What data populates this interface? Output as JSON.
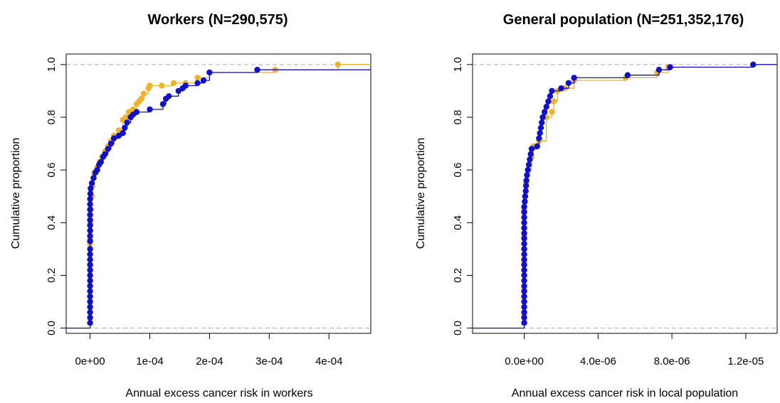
{
  "chart_data": [
    {
      "type": "line",
      "subtype": "empirical-cdf-step",
      "title": "Workers (N=290,575)",
      "xlabel": "Annual excess cancer risk in workers",
      "ylabel": "Cumulative proportion",
      "xlim": [
        -4e-05,
        0.00047
      ],
      "ylim": [
        -0.02,
        1.04
      ],
      "x_ticks": [
        0,
        0.0001,
        0.0002,
        0.0003,
        0.0004
      ],
      "x_tick_labels": [
        "0e+00",
        "1e-04",
        "2e-04",
        "3e-04",
        "4e-04"
      ],
      "y_ticks": [
        0.0,
        0.2,
        0.4,
        0.6,
        0.8,
        1.0
      ],
      "y_tick_labels": [
        "0.0",
        "0.2",
        "0.4",
        "0.6",
        "0.8",
        "1.0"
      ],
      "reference_lines": [
        0,
        1
      ],
      "grid": false,
      "series": [
        {
          "color": "#f0b428",
          "points": [
            [
              0.0,
              0.0
            ],
            [
              0.0,
              0.04
            ],
            [
              0.0,
              0.08
            ],
            [
              0.0,
              0.12
            ],
            [
              0.0,
              0.16
            ],
            [
              0.0,
              0.2
            ],
            [
              0.0,
              0.24
            ],
            [
              0.0,
              0.28
            ],
            [
              0.0,
              0.32
            ],
            [
              0.0,
              0.34
            ],
            [
              5e-07,
              0.37
            ],
            [
              1e-06,
              0.4
            ],
            [
              2e-06,
              0.45
            ],
            [
              3e-06,
              0.5
            ],
            [
              4e-06,
              0.54
            ],
            [
              5e-06,
              0.57
            ],
            [
              7e-06,
              0.59
            ],
            [
              1.2e-05,
              0.61
            ],
            [
              1.6e-05,
              0.63
            ],
            [
              2e-05,
              0.65
            ],
            [
              2.5e-05,
              0.67
            ],
            [
              3e-05,
              0.69
            ],
            [
              3.5e-05,
              0.71
            ],
            [
              4e-05,
              0.73
            ],
            [
              4.8e-05,
              0.75
            ],
            [
              5.5e-05,
              0.79
            ],
            [
              6e-05,
              0.8
            ],
            [
              6.5e-05,
              0.82
            ],
            [
              7.2e-05,
              0.83
            ],
            [
              7.8e-05,
              0.85
            ],
            [
              8.2e-05,
              0.86
            ],
            [
              8.6e-05,
              0.87
            ],
            [
              9e-05,
              0.89
            ],
            [
              9.8e-05,
              0.91
            ],
            [
              0.0001,
              0.92
            ],
            [
              0.00012,
              0.92
            ],
            [
              0.00014,
              0.93
            ],
            [
              0.00016,
              0.93
            ],
            [
              0.00018,
              0.95
            ],
            [
              0.0002,
              0.97
            ],
            [
              0.00031,
              0.98
            ],
            [
              0.000415,
              1.0
            ]
          ]
        },
        {
          "color": "#1010cc",
          "points": [
            [
              0.0,
              0.0
            ],
            [
              0.0,
              0.02
            ],
            [
              0.0,
              0.04
            ],
            [
              0.0,
              0.06
            ],
            [
              0.0,
              0.08
            ],
            [
              0.0,
              0.1
            ],
            [
              0.0,
              0.12
            ],
            [
              0.0,
              0.14
            ],
            [
              0.0,
              0.16
            ],
            [
              0.0,
              0.18
            ],
            [
              0.0,
              0.2
            ],
            [
              0.0,
              0.22
            ],
            [
              0.0,
              0.24
            ],
            [
              0.0,
              0.26
            ],
            [
              0.0,
              0.28
            ],
            [
              0.0,
              0.3
            ],
            [
              0.0,
              0.33
            ],
            [
              0.0,
              0.35
            ],
            [
              0.0,
              0.37
            ],
            [
              0.0,
              0.39
            ],
            [
              0.0,
              0.41
            ],
            [
              0.0,
              0.43
            ],
            [
              0.0,
              0.45
            ],
            [
              0.0,
              0.47
            ],
            [
              0.0,
              0.49
            ],
            [
              5e-07,
              0.51
            ],
            [
              1e-06,
              0.53
            ],
            [
              3e-06,
              0.55
            ],
            [
              6e-06,
              0.57
            ],
            [
              9e-06,
              0.59
            ],
            [
              1.2e-05,
              0.6
            ],
            [
              1.5e-05,
              0.62
            ],
            [
              1.8e-05,
              0.63
            ],
            [
              2.2e-05,
              0.65
            ],
            [
              2.5e-05,
              0.66
            ],
            [
              3e-05,
              0.68
            ],
            [
              3.5e-05,
              0.7
            ],
            [
              4e-05,
              0.72
            ],
            [
              4.8e-05,
              0.73
            ],
            [
              5.5e-05,
              0.74
            ],
            [
              5.8e-05,
              0.76
            ],
            [
              6.2e-05,
              0.78
            ],
            [
              6.8e-05,
              0.8
            ],
            [
              7.2e-05,
              0.81
            ],
            [
              7.8e-05,
              0.82
            ],
            [
              0.0001,
              0.83
            ],
            [
              0.000122,
              0.85
            ],
            [
              0.000127,
              0.87
            ],
            [
              0.000132,
              0.88
            ],
            [
              0.000148,
              0.9
            ],
            [
              0.000155,
              0.91
            ],
            [
              0.00016,
              0.92
            ],
            [
              0.00018,
              0.93
            ],
            [
              0.00019,
              0.94
            ],
            [
              0.0002,
              0.97
            ],
            [
              0.00028,
              0.98
            ]
          ]
        }
      ]
    },
    {
      "type": "line",
      "subtype": "empirical-cdf-step",
      "title": "General population (N=251,352,176)",
      "xlabel": "Annual excess cancer risk in local population",
      "ylabel": "Cumulative proportion",
      "xlim": [
        -2.8e-06,
        1.37e-05
      ],
      "ylim": [
        -0.02,
        1.04
      ],
      "x_ticks": [
        0,
        4e-06,
        8e-06,
        1.2e-05
      ],
      "x_tick_labels": [
        "0.0e+00",
        "4.0e-06",
        "8.0e-06",
        "1.2e-05"
      ],
      "y_ticks": [
        0.0,
        0.2,
        0.4,
        0.6,
        0.8,
        1.0
      ],
      "y_tick_labels": [
        "0.0",
        "0.2",
        "0.4",
        "0.6",
        "0.8",
        "1.0"
      ],
      "reference_lines": [
        0,
        1
      ],
      "grid": false,
      "series": [
        {
          "color": "#f0b428",
          "points": [
            [
              0.0,
              0.0
            ],
            [
              0.0,
              0.05
            ],
            [
              0.0,
              0.1
            ],
            [
              0.0,
              0.15
            ],
            [
              0.0,
              0.2
            ],
            [
              0.0,
              0.25
            ],
            [
              0.0,
              0.3
            ],
            [
              0.0,
              0.35
            ],
            [
              0.0,
              0.4
            ],
            [
              0.0,
              0.45
            ],
            [
              5e-08,
              0.5
            ],
            [
              1e-07,
              0.55
            ],
            [
              2e-07,
              0.6
            ],
            [
              4e-07,
              0.65
            ],
            [
              5e-07,
              0.69
            ],
            [
              8e-07,
              0.71
            ],
            [
              1.2e-06,
              0.8
            ],
            [
              1.5e-06,
              0.82
            ],
            [
              1.6e-06,
              0.86
            ],
            [
              1.8e-06,
              0.9
            ],
            [
              2.2e-06,
              0.91
            ],
            [
              2.7e-06,
              0.94
            ],
            [
              5.5e-06,
              0.95
            ],
            [
              7.2e-06,
              0.97
            ],
            [
              7.8e-06,
              0.99
            ],
            [
              1.24e-05,
              1.0
            ]
          ]
        },
        {
          "color": "#1010cc",
          "points": [
            [
              0.0,
              0.0
            ],
            [
              0.0,
              0.02
            ],
            [
              0.0,
              0.04
            ],
            [
              0.0,
              0.06
            ],
            [
              0.0,
              0.08
            ],
            [
              0.0,
              0.1
            ],
            [
              0.0,
              0.12
            ],
            [
              0.0,
              0.14
            ],
            [
              0.0,
              0.16
            ],
            [
              0.0,
              0.18
            ],
            [
              0.0,
              0.2
            ],
            [
              0.0,
              0.22
            ],
            [
              0.0,
              0.24
            ],
            [
              0.0,
              0.26
            ],
            [
              0.0,
              0.28
            ],
            [
              0.0,
              0.3
            ],
            [
              0.0,
              0.32
            ],
            [
              0.0,
              0.34
            ],
            [
              0.0,
              0.36
            ],
            [
              0.0,
              0.38
            ],
            [
              0.0,
              0.4
            ],
            [
              0.0,
              0.42
            ],
            [
              0.0,
              0.44
            ],
            [
              0.0,
              0.46
            ],
            [
              3e-08,
              0.48
            ],
            [
              5e-08,
              0.5
            ],
            [
              8e-08,
              0.52
            ],
            [
              1e-07,
              0.54
            ],
            [
              1.2e-07,
              0.56
            ],
            [
              1.5e-07,
              0.58
            ],
            [
              2e-07,
              0.6
            ],
            [
              2.5e-07,
              0.62
            ],
            [
              3e-07,
              0.64
            ],
            [
              3.5e-07,
              0.66
            ],
            [
              4e-07,
              0.68
            ],
            [
              7e-07,
              0.69
            ],
            [
              8e-07,
              0.72
            ],
            [
              8.5e-07,
              0.74
            ],
            [
              9e-07,
              0.76
            ],
            [
              9.5e-07,
              0.78
            ],
            [
              1e-06,
              0.8
            ],
            [
              1.1e-06,
              0.82
            ],
            [
              1.2e-06,
              0.84
            ],
            [
              1.3e-06,
              0.86
            ],
            [
              1.4e-06,
              0.88
            ],
            [
              1.5e-06,
              0.9
            ],
            [
              2e-06,
              0.91
            ],
            [
              2.4e-06,
              0.93
            ],
            [
              2.7e-06,
              0.95
            ],
            [
              5.6e-06,
              0.96
            ],
            [
              7.3e-06,
              0.98
            ],
            [
              7.9e-06,
              0.99
            ],
            [
              1.24e-05,
              1.0
            ]
          ]
        }
      ]
    }
  ]
}
